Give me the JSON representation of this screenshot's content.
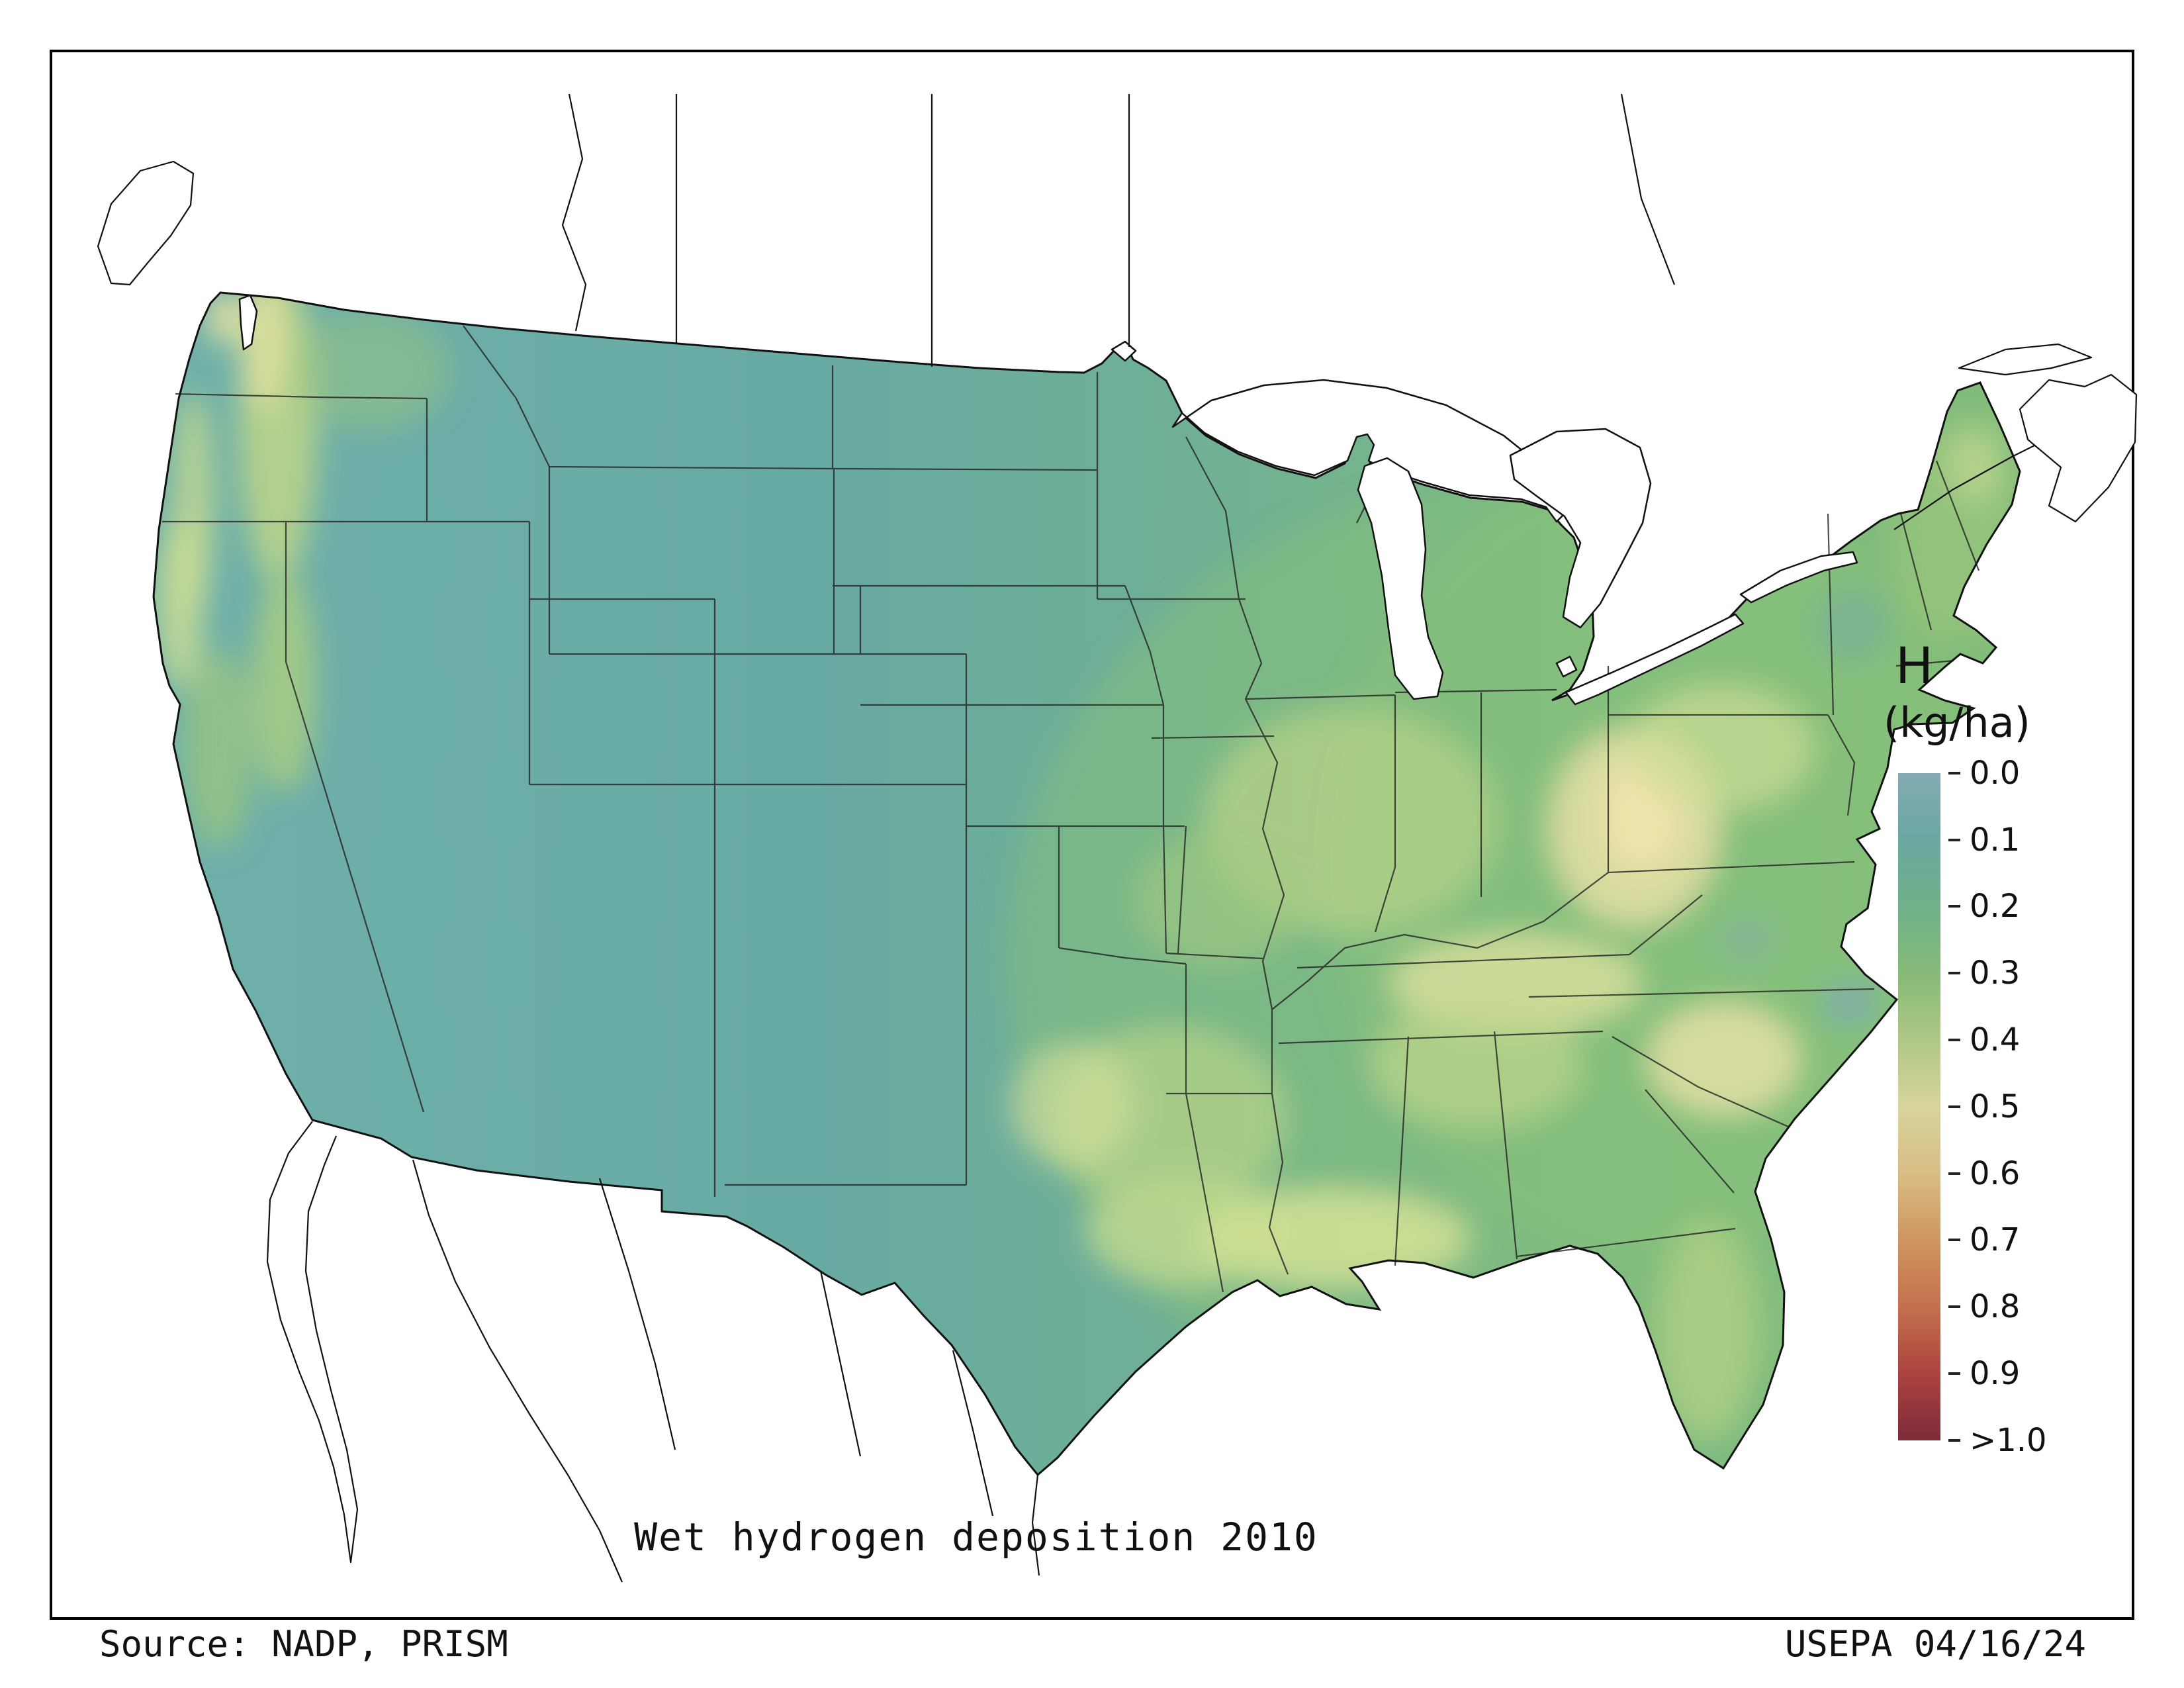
{
  "title": "Wet hydrogen deposition 2010",
  "footer": {
    "source": "Source: NADP, PRISM",
    "credit": "USEPA 04/16/24"
  },
  "legend": {
    "title": "H",
    "units": "(kg/ha)",
    "ticks": [
      "0.0",
      "0.1",
      "0.2",
      "0.3",
      "0.4",
      "0.5",
      "0.6",
      "0.7",
      "0.8",
      "0.9",
      ">1.0"
    ],
    "colors": [
      "#85a9b4",
      "#6aa8a1",
      "#6fb189",
      "#86ba78",
      "#afc785",
      "#d7d49c",
      "#d9bd85",
      "#cf9560",
      "#c4704d",
      "#ab4340",
      "#7d2b38"
    ]
  },
  "map": {
    "region": "Continental United States",
    "base_gradient": [
      "#6fb0aa",
      "#68aaa4",
      "#6fb095",
      "#7cb983",
      "#83bd7a"
    ],
    "high_deposition_color": "#ece3ad",
    "low_deposition_color": "#85a9b4",
    "water_color": "#ffffff",
    "border_color": "#111111"
  }
}
